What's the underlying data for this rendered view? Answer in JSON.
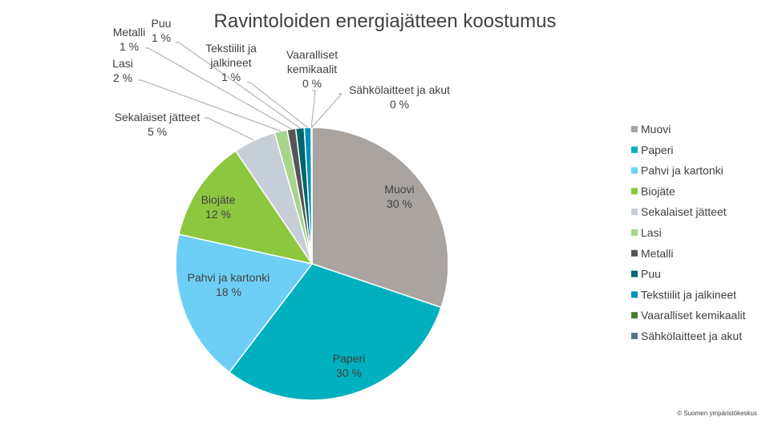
{
  "chart_data": {
    "type": "pie",
    "title": "Ravintoloiden energiajätteen koostumus",
    "legend_position": "right",
    "slices": [
      {
        "name": "Muovi",
        "value": 30,
        "label": "30 %",
        "color": "#A9A4A0"
      },
      {
        "name": "Paperi",
        "value": 30,
        "label": "30 %",
        "color": "#00B0BE"
      },
      {
        "name": "Pahvi ja kartonki",
        "value": 18,
        "label": "18 %",
        "color": "#6ECFF6"
      },
      {
        "name": "Biojäte",
        "value": 12,
        "label": "12 %",
        "color": "#8DC63F"
      },
      {
        "name": "Sekalaiset jätteet",
        "value": 5,
        "label": "5 %",
        "color": "#C6CED8"
      },
      {
        "name": "Lasi",
        "value": 1.5,
        "label": "2 %",
        "color": "#A8D58C"
      },
      {
        "name": "Metalli",
        "value": 1,
        "label": "1 %",
        "color": "#565656"
      },
      {
        "name": "Puu",
        "value": 1,
        "label": "1 %",
        "color": "#00666E"
      },
      {
        "name": "Tekstiilit ja jalkineet",
        "value": 0.8,
        "label": "1 %",
        "color": "#0093B7"
      },
      {
        "name": "Vaaralliset kemikaalit",
        "value": 0.05,
        "label": "0 %",
        "color": "#4E7A2A"
      },
      {
        "name": "Sähkölaitteet ja akut",
        "value": 0.05,
        "label": "0 %",
        "color": "#59758A"
      }
    ]
  },
  "credit": "© Suomen ympäristökeskus"
}
